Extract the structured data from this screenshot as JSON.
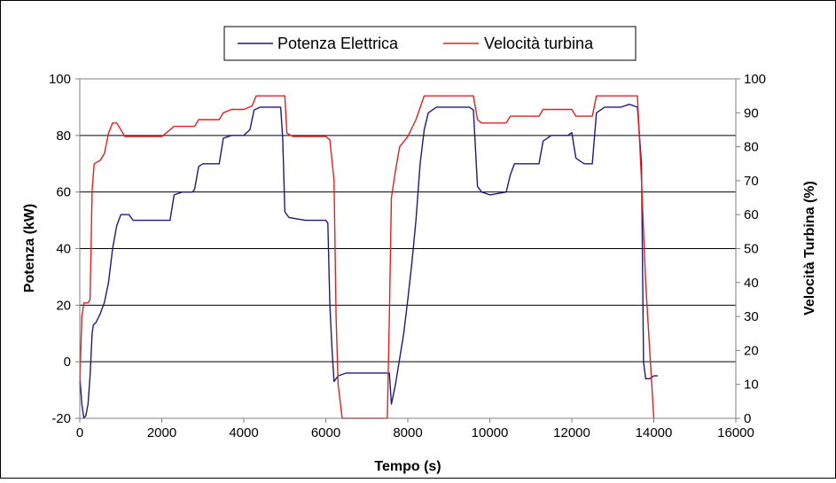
{
  "chart_data": {
    "type": "line",
    "xlabel": "Tempo (s)",
    "ylabel_left": "Potenza (kW)",
    "ylabel_right": "Velocità Turbina (%)",
    "xlim": [
      0,
      16000
    ],
    "ylim_left": [
      -20,
      100
    ],
    "ylim_right": [
      0,
      100
    ],
    "x_ticks": [
      "0",
      "2000",
      "4000",
      "6000",
      "8000",
      "10000",
      "12000",
      "14000",
      "16000"
    ],
    "y_left_ticks": [
      "-20",
      "0",
      "20",
      "40",
      "60",
      "80",
      "100"
    ],
    "y_right_ticks": [
      "0",
      "10",
      "20",
      "30",
      "40",
      "50",
      "60",
      "70",
      "80",
      "90",
      "100"
    ],
    "grid": "horizontal",
    "legend_position": "top-center",
    "series": [
      {
        "name": "Potenza Elettrica",
        "axis": "left",
        "color": "#1f1a7a",
        "points": [
          [
            0,
            -5
          ],
          [
            50,
            -15
          ],
          [
            100,
            -20
          ],
          [
            150,
            -19
          ],
          [
            200,
            -15
          ],
          [
            250,
            -5
          ],
          [
            300,
            10
          ],
          [
            330,
            13
          ],
          [
            400,
            14
          ],
          [
            500,
            17
          ],
          [
            600,
            21
          ],
          [
            700,
            28
          ],
          [
            800,
            40
          ],
          [
            900,
            48
          ],
          [
            1000,
            52
          ],
          [
            1200,
            52
          ],
          [
            1300,
            50
          ],
          [
            1500,
            50
          ],
          [
            2000,
            50
          ],
          [
            2200,
            50
          ],
          [
            2300,
            59
          ],
          [
            2500,
            60
          ],
          [
            2750,
            60
          ],
          [
            2800,
            61
          ],
          [
            2900,
            69
          ],
          [
            3000,
            70
          ],
          [
            3400,
            70
          ],
          [
            3500,
            79
          ],
          [
            3700,
            80
          ],
          [
            4000,
            80
          ],
          [
            4150,
            82
          ],
          [
            4250,
            89
          ],
          [
            4400,
            90
          ],
          [
            4900,
            90
          ],
          [
            4950,
            79
          ],
          [
            5000,
            53
          ],
          [
            5100,
            51
          ],
          [
            5500,
            50
          ],
          [
            6000,
            50
          ],
          [
            6050,
            49
          ],
          [
            6100,
            20
          ],
          [
            6150,
            5
          ],
          [
            6200,
            -7
          ],
          [
            6300,
            -5
          ],
          [
            6500,
            -4
          ],
          [
            7000,
            -4
          ],
          [
            7500,
            -4
          ],
          [
            7550,
            -4
          ],
          [
            7600,
            -15
          ],
          [
            7700,
            -8
          ],
          [
            7900,
            10
          ],
          [
            8000,
            22
          ],
          [
            8100,
            35
          ],
          [
            8200,
            50
          ],
          [
            8300,
            70
          ],
          [
            8400,
            82
          ],
          [
            8500,
            88
          ],
          [
            8700,
            90
          ],
          [
            9000,
            90
          ],
          [
            9500,
            90
          ],
          [
            9600,
            89
          ],
          [
            9700,
            62
          ],
          [
            9800,
            60
          ],
          [
            10000,
            59
          ],
          [
            10400,
            60
          ],
          [
            10500,
            66
          ],
          [
            10600,
            70
          ],
          [
            10900,
            70
          ],
          [
            11200,
            70
          ],
          [
            11300,
            78
          ],
          [
            11500,
            80
          ],
          [
            11900,
            80
          ],
          [
            12000,
            81
          ],
          [
            12100,
            72
          ],
          [
            12300,
            70
          ],
          [
            12500,
            70
          ],
          [
            12600,
            88
          ],
          [
            12800,
            90
          ],
          [
            13200,
            90
          ],
          [
            13400,
            91
          ],
          [
            13600,
            90
          ],
          [
            13700,
            70
          ],
          [
            13750,
            0
          ],
          [
            13800,
            -6
          ],
          [
            13900,
            -6
          ],
          [
            14000,
            -5
          ],
          [
            14100,
            -5
          ]
        ]
      },
      {
        "name": "Velocità turbina",
        "axis": "right",
        "color": "#e02020",
        "points": [
          [
            0,
            10
          ],
          [
            50,
            30
          ],
          [
            100,
            34
          ],
          [
            200,
            34
          ],
          [
            250,
            35
          ],
          [
            300,
            67
          ],
          [
            350,
            75
          ],
          [
            500,
            76
          ],
          [
            600,
            78
          ],
          [
            700,
            84
          ],
          [
            800,
            87
          ],
          [
            900,
            87
          ],
          [
            1000,
            85
          ],
          [
            1100,
            83
          ],
          [
            1500,
            83
          ],
          [
            2000,
            83
          ],
          [
            2100,
            84
          ],
          [
            2300,
            86
          ],
          [
            2800,
            86
          ],
          [
            2900,
            88
          ],
          [
            3400,
            88
          ],
          [
            3500,
            90
          ],
          [
            3700,
            91
          ],
          [
            4000,
            91
          ],
          [
            4200,
            92
          ],
          [
            4300,
            95
          ],
          [
            5000,
            95
          ],
          [
            5050,
            84
          ],
          [
            5200,
            83
          ],
          [
            6000,
            83
          ],
          [
            6100,
            82
          ],
          [
            6200,
            70
          ],
          [
            6250,
            30
          ],
          [
            6300,
            10
          ],
          [
            6400,
            0
          ],
          [
            6500,
            0
          ],
          [
            7000,
            0
          ],
          [
            7500,
            0
          ],
          [
            7550,
            30
          ],
          [
            7600,
            65
          ],
          [
            7700,
            73
          ],
          [
            7800,
            80
          ],
          [
            8000,
            83
          ],
          [
            8200,
            88
          ],
          [
            8400,
            95
          ],
          [
            9600,
            95
          ],
          [
            9700,
            88
          ],
          [
            9800,
            87
          ],
          [
            10400,
            87
          ],
          [
            10500,
            89
          ],
          [
            11200,
            89
          ],
          [
            11300,
            91
          ],
          [
            12000,
            91
          ],
          [
            12100,
            89
          ],
          [
            12500,
            89
          ],
          [
            12600,
            95
          ],
          [
            13600,
            95
          ],
          [
            13700,
            70
          ],
          [
            13800,
            40
          ],
          [
            13900,
            20
          ],
          [
            14000,
            0
          ]
        ]
      }
    ]
  }
}
